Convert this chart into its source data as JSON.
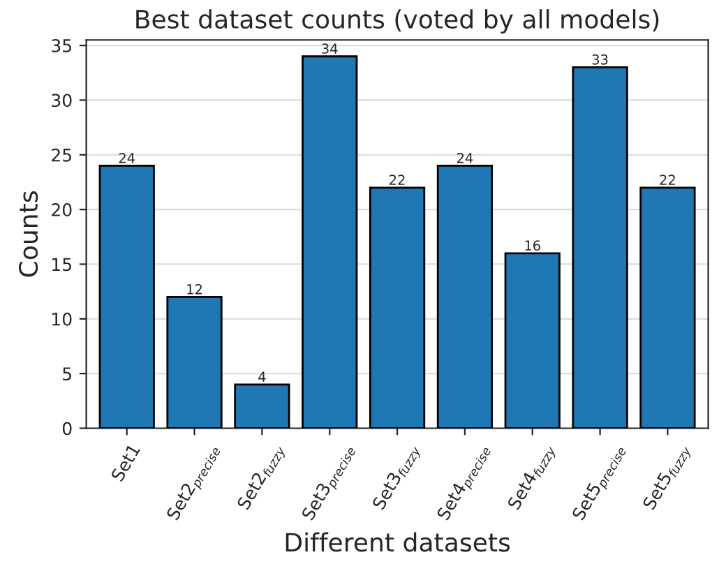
{
  "chart_data": {
    "type": "bar",
    "title": "Best dataset counts (voted by all models)",
    "xlabel": "Different datasets",
    "ylabel": "Counts",
    "categories": [
      "Set1",
      "Set2$_{precise}$",
      "Set2$_{fuzzy}$",
      "Set3$_{precise}$",
      "Set3$_{fuzzy}$",
      "Set4$_{precise}$",
      "Set4$_{fuzzy}$",
      "Set5$_{precise}$",
      "Set5$_{fuzzy}$"
    ],
    "values": [
      24,
      12,
      4,
      34,
      22,
      24,
      16,
      33,
      22
    ],
    "color": "#1f77b4",
    "ylim": [
      0,
      35.5
    ],
    "yticks": [
      0,
      5,
      10,
      15,
      20,
      25,
      30,
      35
    ],
    "grid": "y",
    "data_labels": true
  }
}
